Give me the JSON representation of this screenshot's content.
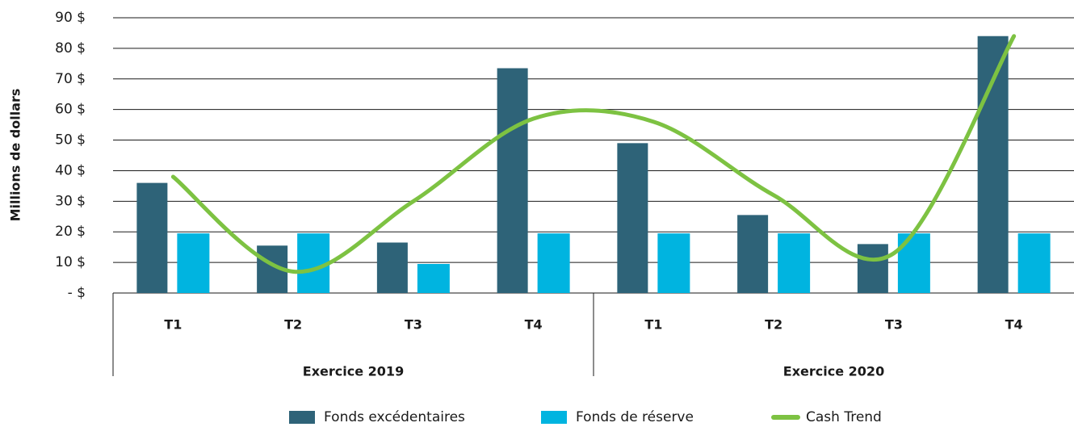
{
  "chart_data": {
    "type": "bar",
    "y_axis_label": "Millions de dollars",
    "categories": [
      "T1",
      "T2",
      "T3",
      "T4",
      "T1",
      "T2",
      "T3",
      "T4"
    ],
    "group_labels": [
      "Exercice 2019",
      "Exercice 2020"
    ],
    "series": [
      {
        "name": "Fonds excédentaires",
        "type": "bar",
        "color": "#2e6378",
        "values": [
          36,
          15.5,
          16.5,
          73.5,
          49,
          25.5,
          16,
          84
        ]
      },
      {
        "name": "Fonds de réserve",
        "type": "bar",
        "color": "#00b4e0",
        "values": [
          19.5,
          19.5,
          9.5,
          19.5,
          19.5,
          19.5,
          19.5,
          19.5
        ]
      },
      {
        "name": "Cash Trend",
        "type": "line",
        "color": "#7dc242",
        "values": [
          38,
          7,
          30,
          57,
          56,
          32,
          13,
          84
        ]
      }
    ],
    "ylim": [
      0,
      90
    ],
    "yticks": [
      {
        "value": 0,
        "label": "- $"
      },
      {
        "value": 10,
        "label": "10 $"
      },
      {
        "value": 20,
        "label": "20 $"
      },
      {
        "value": 30,
        "label": "30 $"
      },
      {
        "value": 40,
        "label": "40 $"
      },
      {
        "value": 50,
        "label": "50 $"
      },
      {
        "value": 60,
        "label": "60 $"
      },
      {
        "value": 70,
        "label": "70 $"
      },
      {
        "value": 80,
        "label": "80 $"
      },
      {
        "value": 90,
        "label": "90 $"
      }
    ],
    "grid": true,
    "legend": "bottom"
  }
}
